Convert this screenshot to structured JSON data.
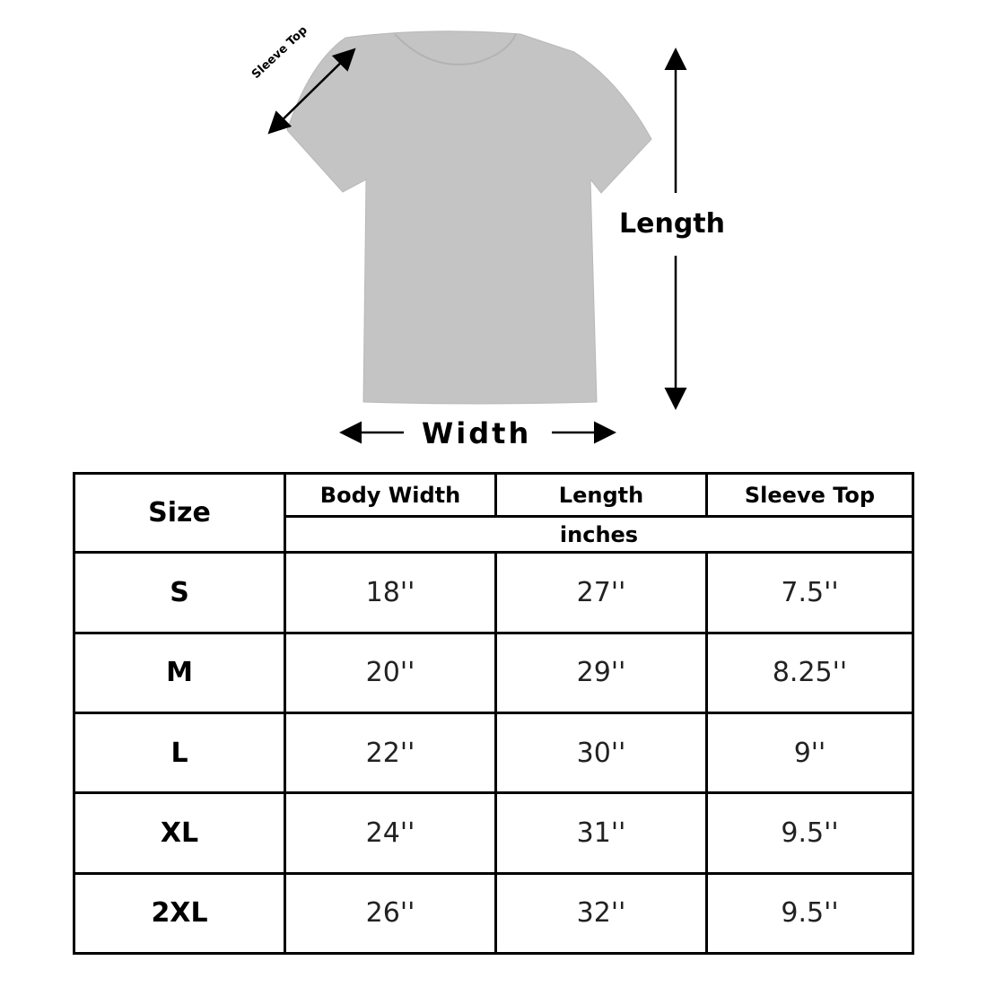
{
  "diagram": {
    "sleeve_label": "Sleeve Top",
    "length_label": "Length",
    "width_label": "Width",
    "shirt_color": "#c4c4c4"
  },
  "table": {
    "size_header": "Size",
    "columns": [
      "Body Width",
      "Length",
      "Sleeve Top"
    ],
    "unit": "inches",
    "rows": [
      {
        "size": "S",
        "values": [
          "18''",
          "27''",
          "7.5''"
        ]
      },
      {
        "size": "M",
        "values": [
          "20''",
          "29''",
          "8.25''"
        ]
      },
      {
        "size": "L",
        "values": [
          "22''",
          "30''",
          "9''"
        ]
      },
      {
        "size": "XL",
        "values": [
          "24''",
          "31''",
          "9.5''"
        ]
      },
      {
        "size": "2XL",
        "values": [
          "26''",
          "32''",
          "9.5''"
        ]
      }
    ]
  }
}
